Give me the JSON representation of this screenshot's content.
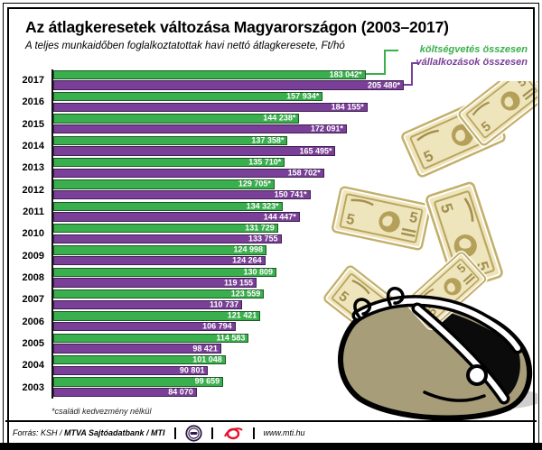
{
  "header": {
    "title": "Az átlagkeresetek változása Magyarországon (2003–2017)",
    "subtitle": "A teljes munkaidőben foglalkoztatottak havi nettó átlagkeresete, Ft/hó"
  },
  "legend": [
    {
      "label": "költségvetés összesen",
      "color": "#3aaf4d"
    },
    {
      "label": "vállalkozások összesen",
      "color": "#7a3f98"
    }
  ],
  "chart_data": {
    "type": "bar",
    "orientation": "horizontal",
    "title": "Az átlagkeresetek változása Magyarországon (2003–2017)",
    "value_unit": "Ft/hó",
    "xlim": [
      0,
      205480
    ],
    "categories": [
      "2017",
      "2016",
      "2015",
      "2014",
      "2013",
      "2012",
      "2011",
      "2010",
      "2009",
      "2008",
      "2007",
      "2006",
      "2005",
      "2004",
      "2003"
    ],
    "series": [
      {
        "name": "költségvetés összesen",
        "color": "#3aaf4d",
        "values": [
          183042,
          157934,
          144238,
          137358,
          135710,
          129705,
          134323,
          131729,
          124998,
          130809,
          123559,
          121421,
          114583,
          101048,
          99659
        ],
        "labels": [
          "183 042*",
          "157 934*",
          "144 238*",
          "137 358*",
          "135 710*",
          "129 705*",
          "134 323*",
          "131 729",
          "124 998",
          "130 809",
          "123 559",
          "121 421",
          "114 583",
          "101 048",
          "99 659"
        ]
      },
      {
        "name": "vállalkozások összesen",
        "color": "#7a3f98",
        "values": [
          205480,
          184155,
          172091,
          165495,
          158702,
          150741,
          144447,
          133755,
          124264,
          119155,
          110737,
          106794,
          98421,
          90801,
          84070
        ],
        "labels": [
          "205 480*",
          "184 155*",
          "172 091*",
          "165 495*",
          "158 702*",
          "150 741*",
          "144 447*",
          "133 755",
          "124 264",
          "119 155",
          "110 737",
          "106 794",
          "98 421",
          "90 801",
          "84 070"
        ]
      }
    ]
  },
  "footnote": "*családi kedvezmény nélkül",
  "footer": {
    "source_prefix": "Forrás: KSH / ",
    "source_bold": "MTVA Sajtóadatbank / MTI",
    "url": "www.mti.hu"
  },
  "colors": {
    "green": "#3aaf4d",
    "purple": "#7a3f98",
    "bill_fill": "#efe5bd",
    "bill_dark": "#a3904f",
    "purse_body": "#a89d79",
    "shadow": "#cfcfcf",
    "mti_red": "#e8112d",
    "mtva_purple": "#2e1a47"
  }
}
